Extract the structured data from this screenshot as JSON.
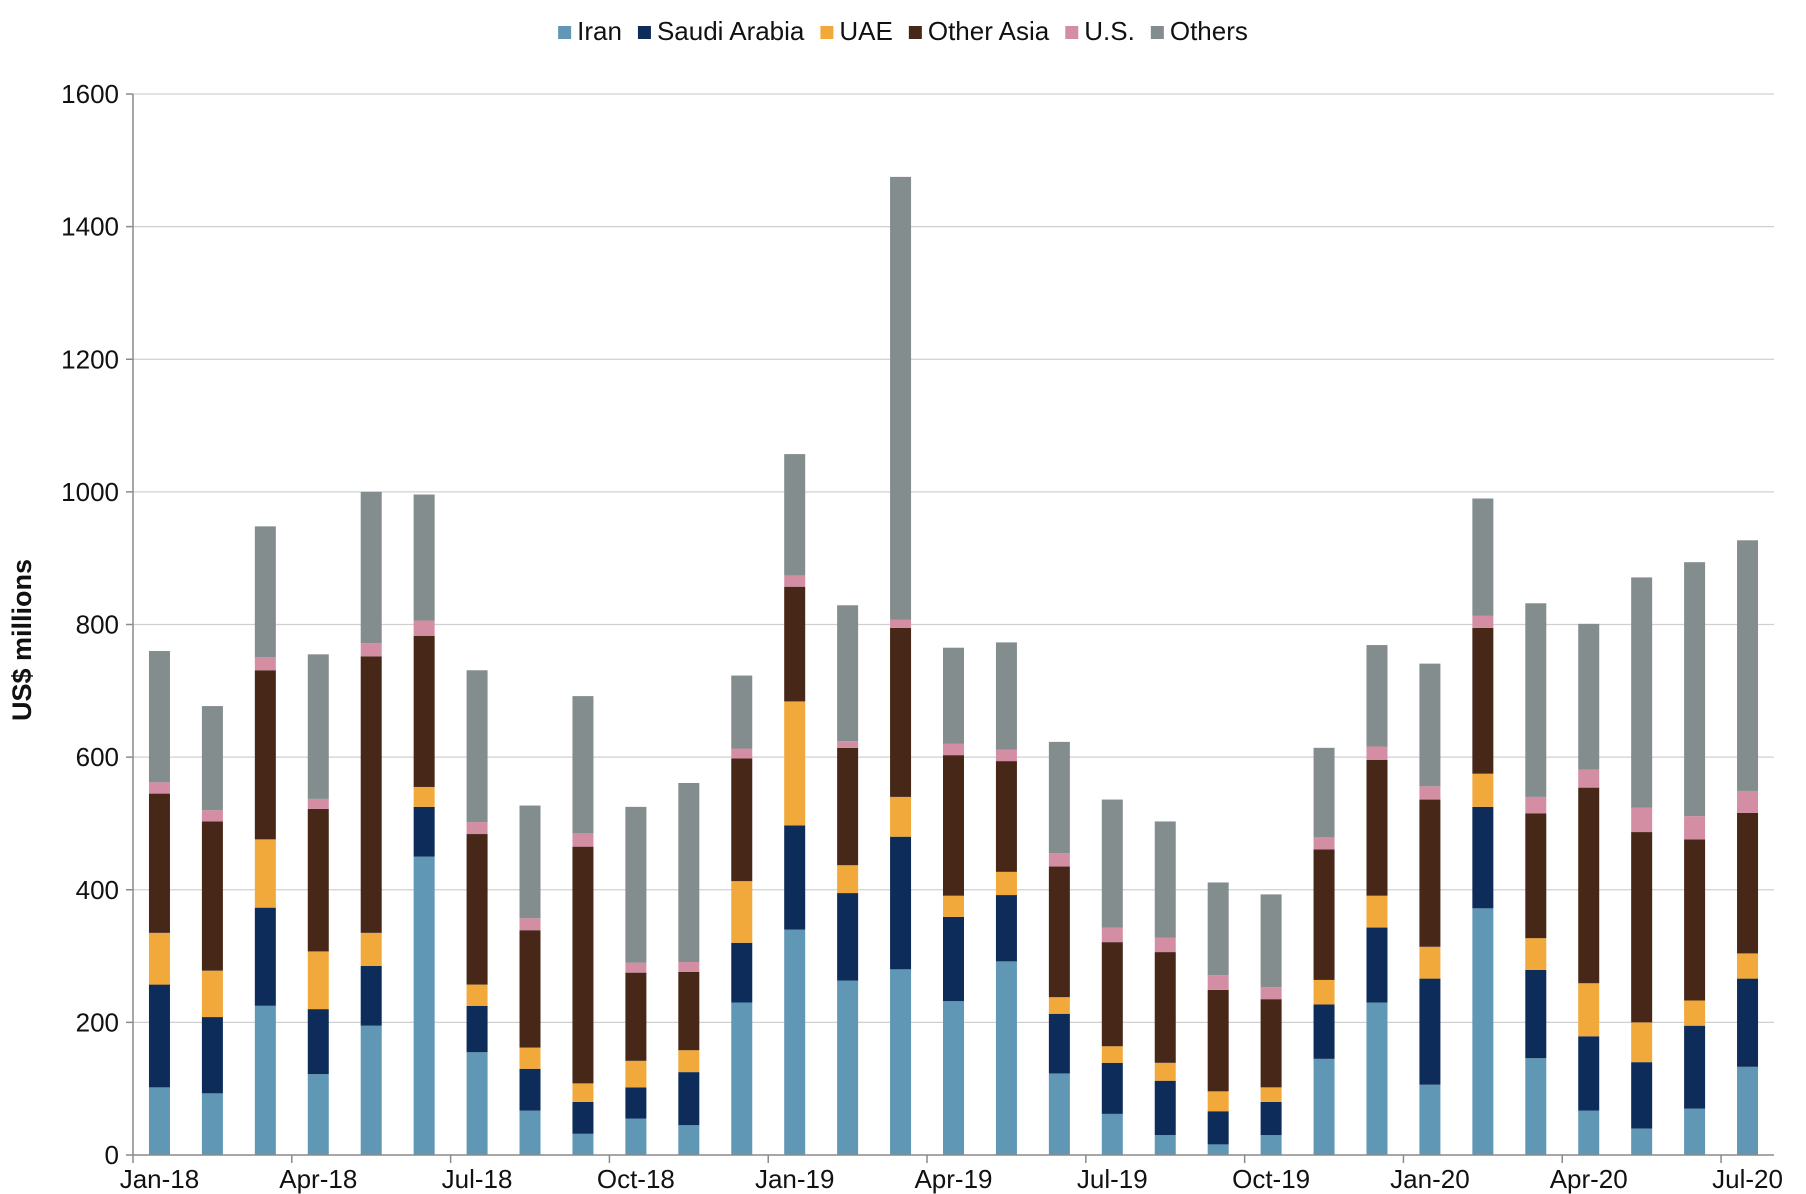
{
  "chart_data": {
    "type": "bar",
    "stacked": true,
    "title": "",
    "xlabel": "",
    "ylabel": "US$ millions",
    "ylim": [
      0,
      1600
    ],
    "yticks": [
      0,
      200,
      400,
      600,
      800,
      1000,
      1200,
      1400,
      1600
    ],
    "grid": true,
    "legend_position": "top",
    "categories": [
      "Jan-18",
      "Feb-18",
      "Mar-18",
      "Apr-18",
      "May-18",
      "Jun-18",
      "Jul-18",
      "Aug-18",
      "Sep-18",
      "Oct-18",
      "Nov-18",
      "Dec-18",
      "Jan-19",
      "Feb-19",
      "Mar-19",
      "Apr-19",
      "May-19",
      "Jun-19",
      "Jul-19",
      "Aug-19",
      "Sep-19",
      "Oct-19",
      "Nov-19",
      "Dec-19",
      "Jan-20",
      "Feb-20",
      "Mar-20",
      "Apr-20",
      "May-20",
      "Jun-20",
      "Jul-20"
    ],
    "xtick_labels": [
      {
        "index": 0,
        "label": "Jan-18"
      },
      {
        "index": 3,
        "label": "Apr-18"
      },
      {
        "index": 6,
        "label": "Jul-18"
      },
      {
        "index": 9,
        "label": "Oct-18"
      },
      {
        "index": 12,
        "label": "Jan-19"
      },
      {
        "index": 15,
        "label": "Apr-19"
      },
      {
        "index": 18,
        "label": "Jul-19"
      },
      {
        "index": 21,
        "label": "Oct-19"
      },
      {
        "index": 24,
        "label": "Jan-20"
      },
      {
        "index": 27,
        "label": "Apr-20"
      },
      {
        "index": 30,
        "label": "Jul-20"
      }
    ],
    "series": [
      {
        "name": "Iran",
        "color": "#5f97b5",
        "values": [
          102,
          93,
          225,
          122,
          195,
          450,
          155,
          67,
          32,
          55,
          45,
          230,
          340,
          263,
          280,
          232,
          292,
          123,
          62,
          30,
          16,
          30,
          145,
          230,
          106,
          372,
          146,
          67,
          40,
          70,
          133
        ]
      },
      {
        "name": "Saudi Arabia",
        "color": "#0d2c5a",
        "values": [
          155,
          115,
          148,
          98,
          90,
          75,
          70,
          63,
          48,
          47,
          80,
          90,
          157,
          132,
          200,
          127,
          100,
          90,
          77,
          82,
          50,
          50,
          82,
          113,
          160,
          153,
          133,
          112,
          100,
          125,
          133
        ]
      },
      {
        "name": "UAE",
        "color": "#f2a93b",
        "values": [
          78,
          70,
          103,
          87,
          50,
          30,
          32,
          32,
          28,
          40,
          33,
          93,
          187,
          42,
          60,
          32,
          35,
          25,
          25,
          27,
          30,
          22,
          37,
          48,
          48,
          50,
          48,
          80,
          60,
          38,
          38
        ]
      },
      {
        "name": "Other Asia",
        "color": "#462718",
        "values": [
          210,
          225,
          255,
          215,
          417,
          228,
          227,
          177,
          357,
          133,
          118,
          185,
          173,
          177,
          255,
          212,
          167,
          197,
          157,
          167,
          153,
          133,
          197,
          205,
          222,
          220,
          188,
          295,
          287,
          243,
          212
        ]
      },
      {
        "name": "U.S.",
        "color": "#d38ea3",
        "values": [
          17,
          17,
          20,
          15,
          20,
          23,
          18,
          18,
          20,
          15,
          15,
          15,
          17,
          10,
          12,
          17,
          17,
          20,
          22,
          22,
          22,
          18,
          18,
          20,
          20,
          18,
          25,
          27,
          37,
          35,
          33
        ]
      },
      {
        "name": "Others",
        "color": "#838d8d",
        "values": [
          198,
          157,
          197,
          218,
          228,
          190,
          229,
          170,
          207,
          235,
          270,
          110,
          183,
          205,
          668,
          145,
          162,
          168,
          193,
          175,
          140,
          140,
          135,
          153,
          185,
          177,
          292,
          220,
          347,
          383,
          378
        ]
      }
    ]
  }
}
